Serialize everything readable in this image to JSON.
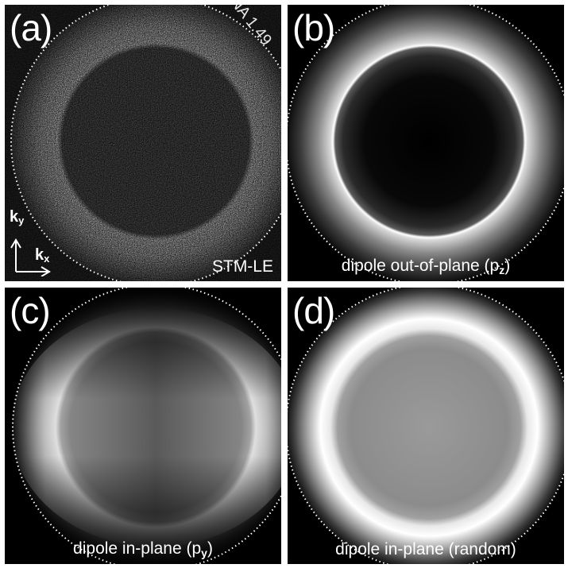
{
  "panels": [
    {
      "tag": "(a)",
      "caption": "STM-LE",
      "na_label": "NA 1.49",
      "kx": "k",
      "kx_sub": "x",
      "ky": "k",
      "ky_sub": "y"
    },
    {
      "tag": "(b)",
      "caption_main": "dipole out-of-plane (p",
      "caption_sub": "z",
      "caption_end": ")"
    },
    {
      "tag": "(c)",
      "caption_main": "dipole in-plane (p",
      "caption_sub": "y",
      "caption_end": ")"
    },
    {
      "tag": "(d)",
      "caption_main": "dipole in-plane (random)"
    }
  ]
}
